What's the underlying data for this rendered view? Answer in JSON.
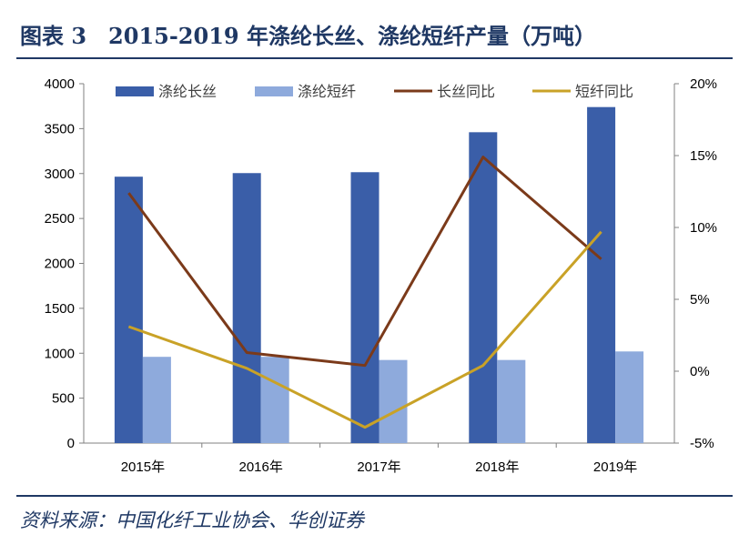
{
  "header": {
    "title": "图表 3　2015-2019 年涤纶长丝、涤纶短纤产量（万吨）"
  },
  "footer": {
    "source": "资料来源：中国化纤工业协会、华创证券"
  },
  "colors": {
    "long_filament": "#3a5ea8",
    "staple_fiber": "#8eaadc",
    "long_yoy": "#7b3a1a",
    "staple_yoy": "#c9a227",
    "title": "#1f3864",
    "axis": "#808080"
  },
  "chart_data": {
    "type": "bar",
    "categories": [
      "2015年",
      "2016年",
      "2017年",
      "2018年",
      "2019年"
    ],
    "series": [
      {
        "name": "涤纶长丝",
        "type": "bar",
        "axis": "left",
        "values": [
          2965,
          3005,
          3015,
          3460,
          3740
        ]
      },
      {
        "name": "涤纶短纤",
        "type": "bar",
        "axis": "left",
        "values": [
          960,
          960,
          925,
          925,
          1020
        ]
      },
      {
        "name": "长丝同比",
        "type": "line",
        "axis": "right",
        "values": [
          0.124,
          0.013,
          0.004,
          0.149,
          0.078
        ]
      },
      {
        "name": "短纤同比",
        "type": "line",
        "axis": "right",
        "values": [
          0.031,
          0.002,
          -0.039,
          0.004,
          0.097
        ]
      }
    ],
    "ylim": [
      0,
      4000
    ],
    "yticks": [
      "0",
      "500",
      "1000",
      "1500",
      "2000",
      "2500",
      "3000",
      "3500",
      "4000"
    ],
    "y2lim": [
      -0.05,
      0.2
    ],
    "y2ticks": [
      "-5%",
      "0%",
      "5%",
      "10%",
      "15%",
      "20%"
    ],
    "legend": "top",
    "grid": false
  }
}
